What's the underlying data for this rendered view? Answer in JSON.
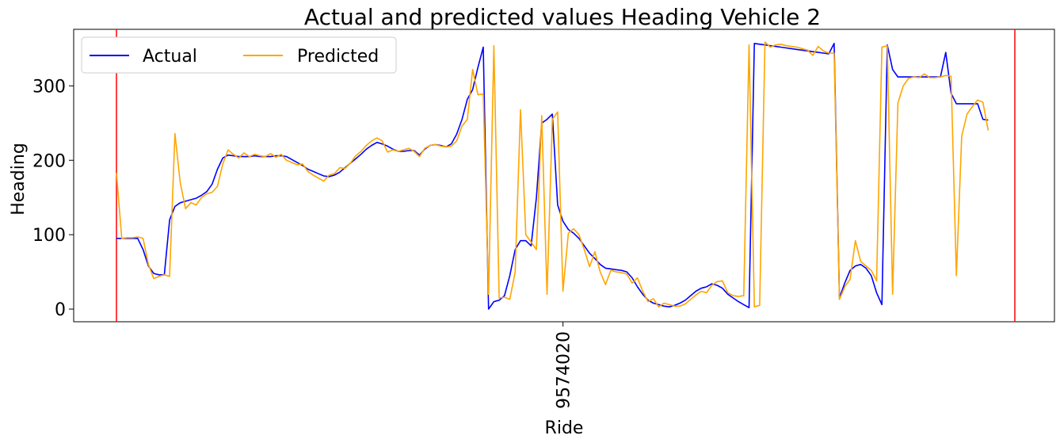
{
  "chart_data": {
    "type": "line",
    "title": "Actual and predicted values Heading Vehicle 2",
    "xlabel": "Ride",
    "ylabel": "Heading",
    "ylim": [
      -17,
      376
    ],
    "yticks": [
      0,
      100,
      200,
      300
    ],
    "xtick_label": "9574020",
    "xtick_index": 84,
    "vlines_at_index": [
      0,
      169
    ],
    "grid": false,
    "legend": {
      "placement": "top-left",
      "ncol": 2
    },
    "series": [
      {
        "name": "Actual",
        "color": "#0000ff",
        "values": [
          95,
          95,
          95,
          95,
          95,
          80,
          58,
          48,
          46,
          46,
          120,
          138,
          143,
          145,
          147,
          149,
          153,
          158,
          168,
          188,
          203,
          207,
          206,
          205,
          205,
          205,
          206,
          205,
          205,
          205,
          206,
          206,
          205,
          201,
          197,
          193,
          188,
          185,
          182,
          179,
          178,
          180,
          184,
          190,
          196,
          202,
          208,
          215,
          220,
          224,
          222,
          219,
          215,
          212,
          212,
          213,
          213,
          207,
          215,
          220,
          221,
          220,
          218,
          222,
          235,
          255,
          282,
          295,
          325,
          352,
          0,
          10,
          12,
          18,
          45,
          80,
          92,
          92,
          85,
          150,
          250,
          255,
          262,
          140,
          118,
          107,
          102,
          95,
          85,
          75,
          68,
          60,
          55,
          54,
          53,
          52,
          50,
          42,
          30,
          20,
          12,
          8,
          6,
          4,
          3,
          5,
          8,
          12,
          18,
          24,
          28,
          30,
          34,
          32,
          28,
          20,
          15,
          10,
          6,
          2,
          357,
          356,
          355,
          354,
          353,
          352,
          351,
          350,
          349,
          348,
          347,
          346,
          345,
          344,
          343,
          357,
          15,
          35,
          52,
          58,
          60,
          55,
          45,
          22,
          6,
          355,
          322,
          312,
          312,
          312,
          312,
          312,
          312,
          312,
          312,
          312,
          345,
          290,
          276,
          276,
          276,
          276,
          276,
          255,
          254
        ]
      },
      {
        "name": "Predicted",
        "color": "#ffa500",
        "values": [
          183,
          95,
          96,
          96,
          97,
          95,
          60,
          41,
          44,
          46,
          44,
          236,
          170,
          135,
          143,
          140,
          150,
          155,
          157,
          165,
          195,
          214,
          208,
          203,
          210,
          205,
          208,
          206,
          205,
          209,
          204,
          208,
          200,
          197,
          194,
          195,
          185,
          180,
          176,
          172,
          180,
          182,
          190,
          189,
          196,
          206,
          212,
          220,
          226,
          230,
          226,
          211,
          214,
          212,
          214,
          216,
          212,
          205,
          216,
          220,
          221,
          219,
          218,
          219,
          226,
          246,
          255,
          322,
          288,
          289,
          20,
          354,
          15,
          16,
          13,
          50,
          268,
          100,
          90,
          80,
          260,
          20,
          255,
          265,
          24,
          102,
          108,
          100,
          80,
          57,
          77,
          50,
          33,
          52,
          50,
          49,
          47,
          35,
          42,
          24,
          10,
          14,
          3,
          8,
          6,
          4,
          4,
          7,
          13,
          19,
          24,
          22,
          32,
          37,
          38,
          22,
          18,
          17,
          18,
          355,
          3,
          5,
          359,
          352,
          355,
          356,
          354,
          353,
          352,
          350,
          348,
          341,
          353,
          347,
          344,
          344,
          13,
          30,
          40,
          92,
          64,
          58,
          52,
          38,
          352,
          354,
          20,
          277,
          300,
          310,
          312,
          311,
          316,
          311,
          311,
          312,
          314,
          313,
          45,
          232,
          262,
          272,
          281,
          278,
          240
        ]
      }
    ]
  }
}
